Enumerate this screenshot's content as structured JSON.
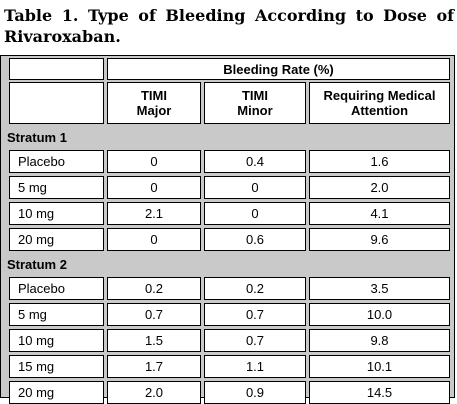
{
  "caption": "Table 1. Type of Bleeding According to Dose of Rivaroxaban.",
  "header": {
    "group": "Bleeding Rate (%)",
    "col1": "TIMI\nMajor",
    "col2": "TIMI\nMinor",
    "col3": "Requiring Medical\nAttention"
  },
  "strata": [
    {
      "label": "Stratum 1",
      "rows": [
        {
          "dose": "Placebo",
          "major": "0",
          "minor": "0.4",
          "medical": "1.6"
        },
        {
          "dose": "5 mg",
          "major": "0",
          "minor": "0",
          "medical": "2.0"
        },
        {
          "dose": "10 mg",
          "major": "2.1",
          "minor": "0",
          "medical": "4.1"
        },
        {
          "dose": "20 mg",
          "major": "0",
          "minor": "0.6",
          "medical": "9.6"
        }
      ]
    },
    {
      "label": "Stratum 2",
      "rows": [
        {
          "dose": "Placebo",
          "major": "0.2",
          "minor": "0.2",
          "medical": "3.5"
        },
        {
          "dose": "5 mg",
          "major": "0.7",
          "minor": "0.7",
          "medical": "10.0"
        },
        {
          "dose": "10 mg",
          "major": "1.5",
          "minor": "0.7",
          "medical": "9.8"
        },
        {
          "dose": "15 mg",
          "major": "1.7",
          "minor": "1.1",
          "medical": "10.1"
        },
        {
          "dose": "20 mg",
          "major": "2.0",
          "minor": "0.9",
          "medical": "14.5"
        }
      ]
    }
  ]
}
